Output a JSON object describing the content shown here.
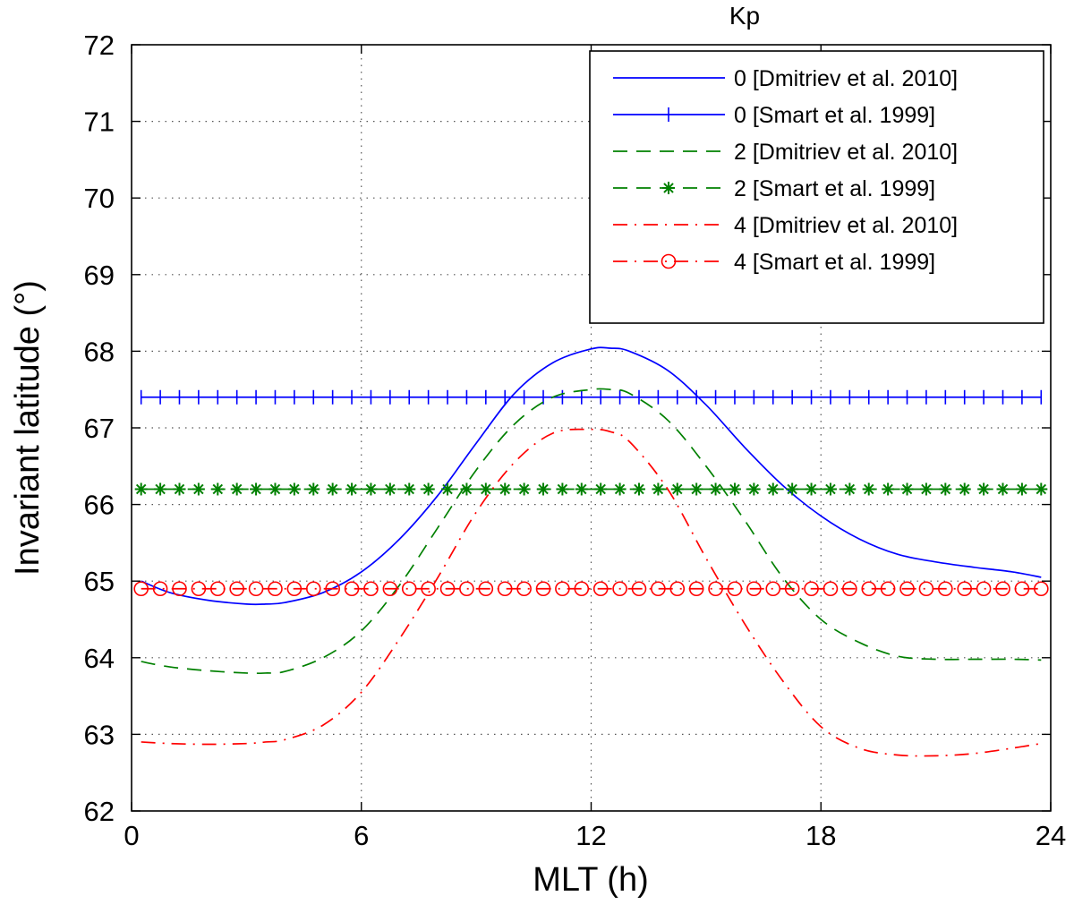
{
  "chart_data": {
    "type": "line",
    "title": "",
    "xlabel": "MLT (h)",
    "ylabel": "Invariant latitude (°)",
    "xlim": [
      0,
      24
    ],
    "ylim": [
      62,
      72
    ],
    "xticks": [
      "0",
      "6",
      "12",
      "18",
      "24"
    ],
    "yticks": [
      "62",
      "63",
      "64",
      "65",
      "66",
      "67",
      "68",
      "69",
      "70",
      "71",
      "72"
    ],
    "grid": true,
    "legend": {
      "title": "Kp",
      "position": "top-right"
    },
    "x": [
      0.25,
      1,
      2,
      3,
      3.5,
      4,
      5,
      6,
      7,
      8,
      9,
      10,
      11,
      12,
      12.5,
      13,
      14,
      15,
      16,
      17,
      18,
      19,
      20,
      21,
      22,
      23,
      23.75
    ],
    "series": [
      {
        "name": "0 [Dmitriev et al. 2010]",
        "color": "#0000ff",
        "dash": "solid",
        "marker": "none",
        "values": [
          65.0,
          64.85,
          64.75,
          64.7,
          64.7,
          64.72,
          64.85,
          65.12,
          65.55,
          66.12,
          66.8,
          67.45,
          67.85,
          68.03,
          68.04,
          68.0,
          67.75,
          67.3,
          66.75,
          66.25,
          65.85,
          65.55,
          65.35,
          65.25,
          65.18,
          65.12,
          65.05
        ]
      },
      {
        "name": "0 [Smart et al. 1999]",
        "color": "#0000ff",
        "dash": "solid",
        "marker": "plus",
        "constant": 67.4
      },
      {
        "name": "2 [Dmitriev et al. 2010]",
        "color": "#008000",
        "dash": "dashed",
        "marker": "none",
        "values": [
          63.95,
          63.88,
          63.83,
          63.8,
          63.8,
          63.82,
          64.0,
          64.35,
          64.95,
          65.7,
          66.45,
          67.05,
          67.4,
          67.5,
          67.5,
          67.45,
          67.1,
          66.5,
          65.8,
          65.05,
          64.5,
          64.2,
          64.02,
          63.98,
          63.98,
          63.98,
          63.97
        ]
      },
      {
        "name": "2 [Smart et al. 1999]",
        "color": "#008000",
        "dash": "dashed",
        "marker": "asterisk",
        "constant": 66.2
      },
      {
        "name": "4 [Dmitriev et al. 2010]",
        "color": "#ff0000",
        "dash": "dashdot",
        "marker": "none",
        "values": [
          62.9,
          62.88,
          62.87,
          62.88,
          62.9,
          62.93,
          63.12,
          63.55,
          64.25,
          65.05,
          65.9,
          66.55,
          66.93,
          66.98,
          66.95,
          66.82,
          66.2,
          65.3,
          64.45,
          63.7,
          63.1,
          62.82,
          62.73,
          62.72,
          62.75,
          62.82,
          62.88
        ]
      },
      {
        "name": "4 [Smart et al. 1999]",
        "color": "#ff0000",
        "dash": "dashdot",
        "marker": "circle",
        "constant": 64.9
      }
    ]
  }
}
